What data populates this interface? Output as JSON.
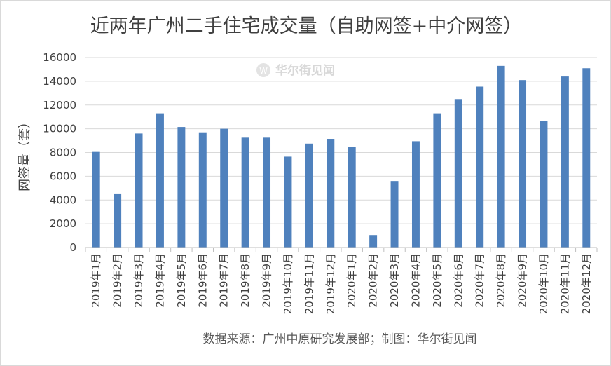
{
  "chart_data": {
    "type": "bar",
    "title": "近两年广州二手住宅成交量（自助网签+中介网签）",
    "ylabel": "网签量（套）",
    "xlabel": "",
    "ylim": [
      0,
      16000
    ],
    "yticks": [
      0,
      2000,
      4000,
      6000,
      8000,
      10000,
      12000,
      14000,
      16000
    ],
    "grid": true,
    "legend": "none",
    "color": "#4f81bd",
    "categories": [
      "2019年1月",
      "2019年2月",
      "2019年3月",
      "2019年4月",
      "2019年5月",
      "2019年6月",
      "2019年7月",
      "2019年8月",
      "2019年9月",
      "2019年10月",
      "2019年11月",
      "2019年12月",
      "2020年1月",
      "2020年2月",
      "2020年3月",
      "2020年4月",
      "2020年5月",
      "2020年6月",
      "2020年7月",
      "2020年8月",
      "2020年9月",
      "2020年10月",
      "2020年11月",
      "2020年12月"
    ],
    "values": [
      8050,
      4550,
      9600,
      11300,
      10150,
      9700,
      10000,
      9250,
      9250,
      7650,
      8750,
      9150,
      8450,
      1050,
      5600,
      8950,
      11300,
      12500,
      13550,
      15300,
      14100,
      10650,
      14400,
      15100
    ]
  },
  "source": "数据来源：广州中原研究发展部；制图：华尔街见闻",
  "watermark": "华尔街见闻"
}
